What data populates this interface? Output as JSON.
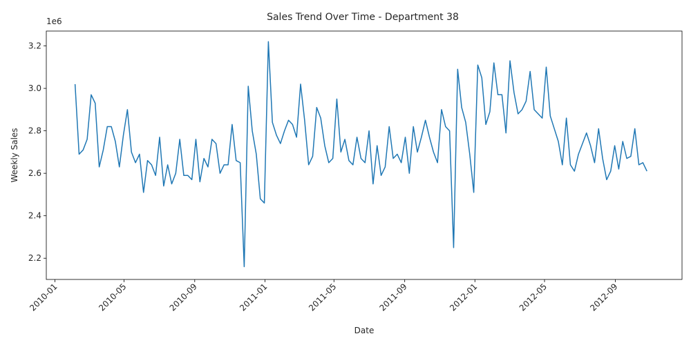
{
  "chart_data": {
    "type": "line",
    "title": "Sales Trend Over Time - Department 38",
    "xlabel": "Date",
    "ylabel": "Weekly Sales",
    "y_offset_text": "1e6",
    "y_multiplier": 1000000,
    "ylim": [
      2.1,
      3.27
    ],
    "xlim": [
      "2009-12-17",
      "2012-12-26"
    ],
    "x_ticks": [
      "2010-01",
      "2010-05",
      "2010-09",
      "2011-01",
      "2011-05",
      "2011-09",
      "2012-01",
      "2012-05",
      "2012-09"
    ],
    "y_ticks": [
      "2.2",
      "2.4",
      "2.6",
      "2.8",
      "3.0",
      "3.2"
    ],
    "grid": false,
    "line_color": "#1f77b4",
    "series": [
      {
        "x": [
          "2010-02-05",
          "2010-02-12",
          "2010-02-19",
          "2010-02-26",
          "2010-03-05",
          "2010-03-12",
          "2010-03-19",
          "2010-03-26",
          "2010-04-02",
          "2010-04-09",
          "2010-04-16",
          "2010-04-23",
          "2010-04-30",
          "2010-05-07",
          "2010-05-14",
          "2010-05-21",
          "2010-05-28",
          "2010-06-04",
          "2010-06-11",
          "2010-06-18",
          "2010-06-25",
          "2010-07-02",
          "2010-07-09",
          "2010-07-16",
          "2010-07-23",
          "2010-07-30",
          "2010-08-06",
          "2010-08-13",
          "2010-08-20",
          "2010-08-27",
          "2010-09-03",
          "2010-09-10",
          "2010-09-17",
          "2010-09-24",
          "2010-10-01",
          "2010-10-08",
          "2010-10-15",
          "2010-10-22",
          "2010-10-29",
          "2010-11-05",
          "2010-11-12",
          "2010-11-19",
          "2010-11-26",
          "2010-12-03",
          "2010-12-10",
          "2010-12-17",
          "2010-12-24",
          "2010-12-31",
          "2011-01-07",
          "2011-01-14",
          "2011-01-21",
          "2011-01-28",
          "2011-02-04",
          "2011-02-11",
          "2011-02-18",
          "2011-02-25",
          "2011-03-04",
          "2011-03-11",
          "2011-03-18",
          "2011-03-25",
          "2011-04-01",
          "2011-04-08",
          "2011-04-15",
          "2011-04-22",
          "2011-04-29",
          "2011-05-06",
          "2011-05-13",
          "2011-05-20",
          "2011-05-27",
          "2011-06-03",
          "2011-06-10",
          "2011-06-17",
          "2011-06-24",
          "2011-07-01",
          "2011-07-08",
          "2011-07-15",
          "2011-07-22",
          "2011-07-29",
          "2011-08-05",
          "2011-08-12",
          "2011-08-19",
          "2011-08-26",
          "2011-09-02",
          "2011-09-09",
          "2011-09-16",
          "2011-09-23",
          "2011-09-30",
          "2011-10-07",
          "2011-10-14",
          "2011-10-21",
          "2011-10-28",
          "2011-11-04",
          "2011-11-11",
          "2011-11-18",
          "2011-11-25",
          "2011-12-02",
          "2011-12-09",
          "2011-12-16",
          "2011-12-23",
          "2011-12-30",
          "2012-01-06",
          "2012-01-13",
          "2012-01-20",
          "2012-01-27",
          "2012-02-03",
          "2012-02-10",
          "2012-02-17",
          "2012-02-24",
          "2012-03-02",
          "2012-03-09",
          "2012-03-16",
          "2012-03-23",
          "2012-03-30",
          "2012-04-06",
          "2012-04-13",
          "2012-04-20",
          "2012-04-27",
          "2012-05-04",
          "2012-05-11",
          "2012-05-18",
          "2012-05-25",
          "2012-06-01",
          "2012-06-08",
          "2012-06-15",
          "2012-06-22",
          "2012-06-29",
          "2012-07-06",
          "2012-07-13",
          "2012-07-20",
          "2012-07-27",
          "2012-08-03",
          "2012-08-10",
          "2012-08-17",
          "2012-08-24",
          "2012-08-31",
          "2012-09-07",
          "2012-09-14",
          "2012-09-21",
          "2012-09-28",
          "2012-10-05",
          "2012-10-12",
          "2012-10-19",
          "2012-10-26"
        ],
        "values": [
          3.02,
          2.69,
          2.71,
          2.76,
          2.97,
          2.93,
          2.63,
          2.71,
          2.82,
          2.82,
          2.75,
          2.63,
          2.78,
          2.9,
          2.7,
          2.65,
          2.69,
          2.51,
          2.66,
          2.64,
          2.59,
          2.77,
          2.54,
          2.64,
          2.55,
          2.6,
          2.76,
          2.59,
          2.59,
          2.57,
          2.76,
          2.56,
          2.67,
          2.63,
          2.76,
          2.74,
          2.6,
          2.64,
          2.64,
          2.83,
          2.66,
          2.65,
          2.16,
          3.01,
          2.8,
          2.69,
          2.48,
          2.46,
          3.22,
          2.84,
          2.78,
          2.74,
          2.8,
          2.85,
          2.83,
          2.77,
          3.02,
          2.85,
          2.64,
          2.68,
          2.91,
          2.86,
          2.73,
          2.65,
          2.67,
          2.95,
          2.7,
          2.76,
          2.66,
          2.64,
          2.77,
          2.67,
          2.65,
          2.8,
          2.55,
          2.73,
          2.59,
          2.63,
          2.82,
          2.67,
          2.69,
          2.65,
          2.77,
          2.6,
          2.82,
          2.7,
          2.77,
          2.85,
          2.77,
          2.7,
          2.65,
          2.9,
          2.82,
          2.8,
          2.25,
          3.09,
          2.91,
          2.84,
          2.69,
          2.51,
          3.11,
          3.05,
          2.83,
          2.89,
          3.12,
          2.97,
          2.97,
          2.79,
          3.13,
          2.98,
          2.88,
          2.9,
          2.94,
          3.08,
          2.9,
          2.88,
          2.86,
          3.1,
          2.87,
          2.81,
          2.75,
          2.64,
          2.86,
          2.64,
          2.61,
          2.69,
          2.74,
          2.79,
          2.73,
          2.65,
          2.81,
          2.67,
          2.57,
          2.61,
          2.73,
          2.62,
          2.75,
          2.67,
          2.68,
          2.81,
          2.64,
          2.65,
          2.61
        ]
      }
    ]
  }
}
